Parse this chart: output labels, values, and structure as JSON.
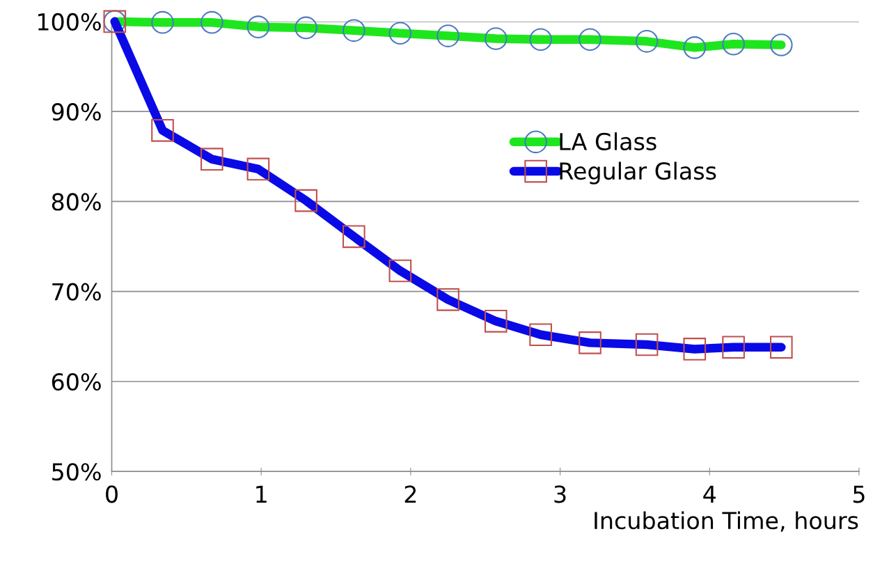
{
  "chart_data": {
    "type": "line",
    "xlabel": "Incubation Time, hours",
    "x": [
      0.02,
      0.34,
      0.67,
      0.98,
      1.3,
      1.62,
      1.93,
      2.25,
      2.57,
      2.87,
      3.2,
      3.58,
      3.9,
      4.16,
      4.48
    ],
    "series": [
      {
        "name": "LA Glass",
        "color": "#1ee61e",
        "marker": "circle",
        "values": [
          100,
          99.9,
          99.9,
          99.4,
          99.3,
          99.0,
          98.7,
          98.4,
          98.1,
          98.0,
          98.0,
          97.8,
          97.1,
          97.5,
          97.4
        ]
      },
      {
        "name": "Regular Glass",
        "color": "#0a0ae6",
        "marker": "square",
        "values": [
          100,
          87.9,
          84.7,
          83.6,
          80.1,
          76.1,
          72.3,
          69.1,
          66.7,
          65.2,
          64.3,
          64.1,
          63.6,
          63.8,
          63.8
        ]
      }
    ],
    "xlim": [
      0,
      5
    ],
    "xticks": [
      0,
      1,
      2,
      3,
      4,
      5
    ],
    "ylim": [
      50,
      100
    ],
    "yticks": [
      {
        "value": 50,
        "label": "50%"
      },
      {
        "value": 60,
        "label": "60%"
      },
      {
        "value": 70,
        "label": "70%"
      },
      {
        "value": 80,
        "label": "80%"
      },
      {
        "value": 90,
        "label": "90%"
      },
      {
        "value": 100,
        "label": "100%"
      }
    ],
    "grid": "y",
    "legend": "right"
  }
}
